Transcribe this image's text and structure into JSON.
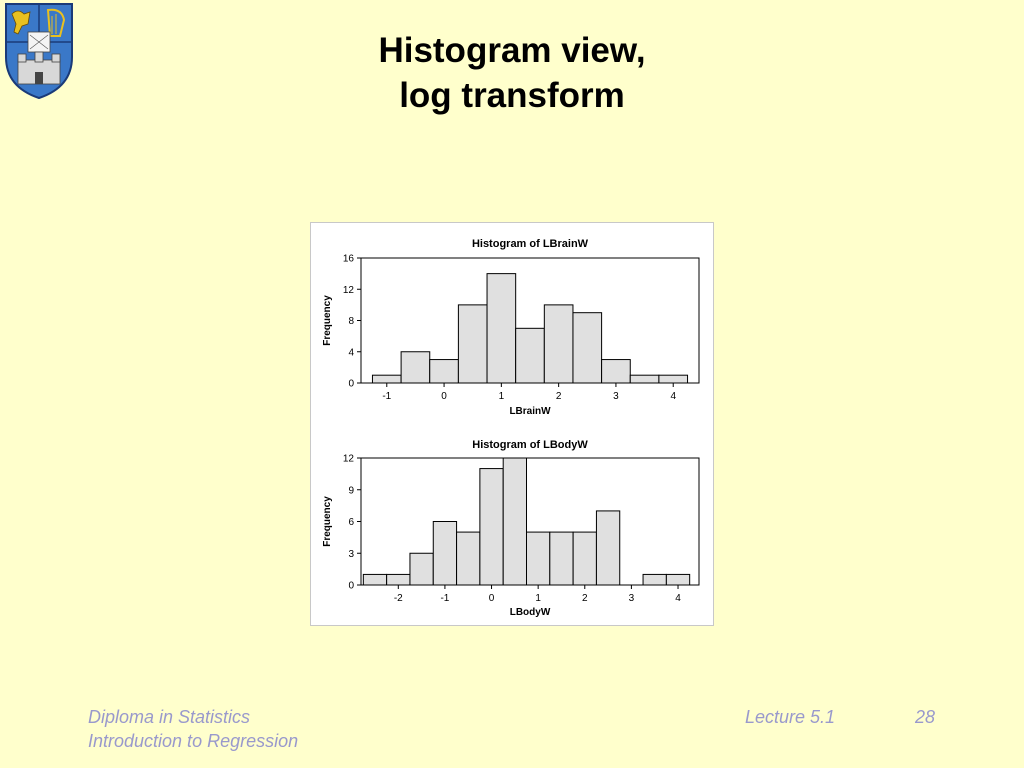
{
  "slide": {
    "title_line1": "Histogram view,",
    "title_line2": "log transform"
  },
  "footer": {
    "course_line1": "Diploma in Statistics",
    "course_line2": "Introduction to Regression",
    "lecture": "Lecture 5.1",
    "page": "28"
  },
  "logo": {
    "name": "college-crest"
  },
  "chart_data": [
    {
      "type": "bar",
      "title": "Histogram of LBrainW",
      "xlabel": "LBrainW",
      "ylabel": "Frequency",
      "bin_edges": [
        -1.25,
        -0.75,
        -0.25,
        0.25,
        0.75,
        1.25,
        1.75,
        2.25,
        2.75,
        3.25,
        3.75,
        4.25
      ],
      "values": [
        1,
        4,
        3,
        10,
        14,
        7,
        10,
        9,
        3,
        1,
        1
      ],
      "xlim": [
        -1.45,
        4.45
      ],
      "ylim": [
        0,
        16
      ],
      "xticks": [
        -1,
        0,
        1,
        2,
        3,
        4
      ],
      "yticks": [
        0,
        4,
        8,
        12,
        16
      ],
      "bar_color": "#e0e0e0",
      "grid": false
    },
    {
      "type": "bar",
      "title": "Histogram of LBodyW",
      "xlabel": "LBodyW",
      "ylabel": "Frequency",
      "bin_edges": [
        -2.75,
        -2.25,
        -1.75,
        -1.25,
        -0.75,
        -0.25,
        0.25,
        0.75,
        1.25,
        1.75,
        2.25,
        2.75,
        3.25,
        3.75,
        4.25
      ],
      "values": [
        1,
        1,
        3,
        6,
        5,
        11,
        12,
        5,
        5,
        5,
        7,
        0,
        1,
        1
      ],
      "xlim": [
        -2.8,
        4.45
      ],
      "ylim": [
        0,
        12
      ],
      "xticks": [
        -2,
        -1,
        0,
        1,
        2,
        3,
        4
      ],
      "yticks": [
        0,
        3,
        6,
        9,
        12
      ],
      "bar_color": "#e0e0e0",
      "grid": false
    }
  ]
}
